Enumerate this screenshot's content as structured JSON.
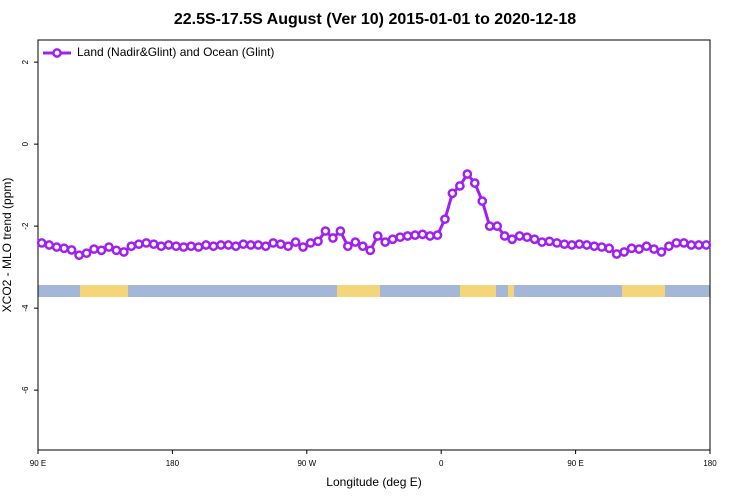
{
  "chart_data": {
    "type": "line",
    "title": "22.5S-17.5S August (Ver 10)   2015-01-01 to 2020-12-18",
    "x_label": "Longitude (deg E)",
    "y_label": "XCO2 - MLO trend (ppm)",
    "legend": "top-left",
    "xlim": [
      90,
      540
    ],
    "ylim": [
      -7.46,
      2.54
    ],
    "xticks": [
      {
        "value": 90,
        "label": "90 E"
      },
      180,
      {
        "value": 270,
        "label": "90 W"
      },
      {
        "value": 360,
        "label": "0"
      },
      {
        "value": 450,
        "label": "90 E"
      },
      {
        "value": 540,
        "label": "180"
      }
    ],
    "yticks": [
      2,
      0,
      -2,
      -4,
      -6
    ],
    "series": [
      {
        "name": "Land (Nadir&Glint) and Ocean (Glint)",
        "color": "#a020f0",
        "x": [
          92.5,
          97.5,
          102.5,
          107.5,
          112.5,
          117.5,
          122.5,
          127.5,
          132.5,
          137.5,
          142.5,
          147.5,
          152.5,
          157.5,
          162.5,
          167.5,
          172.5,
          177.5,
          182.5,
          187.5,
          192.5,
          197.5,
          202.5,
          207.5,
          212.5,
          217.5,
          222.5,
          227.5,
          232.5,
          237.5,
          242.5,
          247.5,
          252.5,
          257.5,
          262.5,
          267.5,
          272.5,
          277.5,
          282.5,
          287.5,
          292.5,
          297.5,
          302.5,
          307.5,
          312.5,
          317.5,
          322.5,
          327.5,
          332.5,
          337.5,
          342.5,
          347.5,
          352.5,
          357.5,
          362.5,
          367.5,
          372.5,
          377.5,
          382.5,
          387.5,
          392.5,
          397.5,
          402.5,
          407.5,
          412.5,
          417.5,
          422.5,
          427.5,
          432.5,
          437.5,
          442.5,
          447.5,
          452.5,
          457.5,
          462.5,
          467.5,
          472.5,
          477.5,
          482.5,
          487.5,
          492.5,
          497.5,
          502.5,
          507.5,
          512.5,
          517.5,
          522.5,
          527.5,
          532.5,
          537.5
        ],
        "values": [
          -2.41,
          -2.46,
          -2.51,
          -2.54,
          -2.58,
          -2.71,
          -2.66,
          -2.56,
          -2.59,
          -2.51,
          -2.59,
          -2.63,
          -2.49,
          -2.44,
          -2.41,
          -2.44,
          -2.49,
          -2.46,
          -2.49,
          -2.51,
          -2.49,
          -2.51,
          -2.46,
          -2.49,
          -2.46,
          -2.46,
          -2.49,
          -2.44,
          -2.46,
          -2.46,
          -2.49,
          -2.41,
          -2.44,
          -2.49,
          -2.39,
          -2.51,
          -2.41,
          -2.37,
          -2.12,
          -2.29,
          -2.12,
          -2.49,
          -2.39,
          -2.49,
          -2.59,
          -2.24,
          -2.39,
          -2.32,
          -2.27,
          -2.24,
          -2.22,
          -2.2,
          -2.24,
          -2.22,
          -1.83,
          -1.2,
          -1.02,
          -0.73,
          -0.95,
          -1.39,
          -2.0,
          -2.0,
          -2.24,
          -2.32,
          -2.24,
          -2.27,
          -2.32,
          -2.39,
          -2.37,
          -2.41,
          -2.44,
          -2.46,
          -2.44,
          -2.46,
          -2.49,
          -2.51,
          -2.54,
          -2.68,
          -2.63,
          -2.54,
          -2.56,
          -2.49,
          -2.56,
          -2.63,
          -2.49,
          -2.41,
          -2.41,
          -2.46,
          -2.46,
          -2.46
        ]
      }
    ]
  }
}
